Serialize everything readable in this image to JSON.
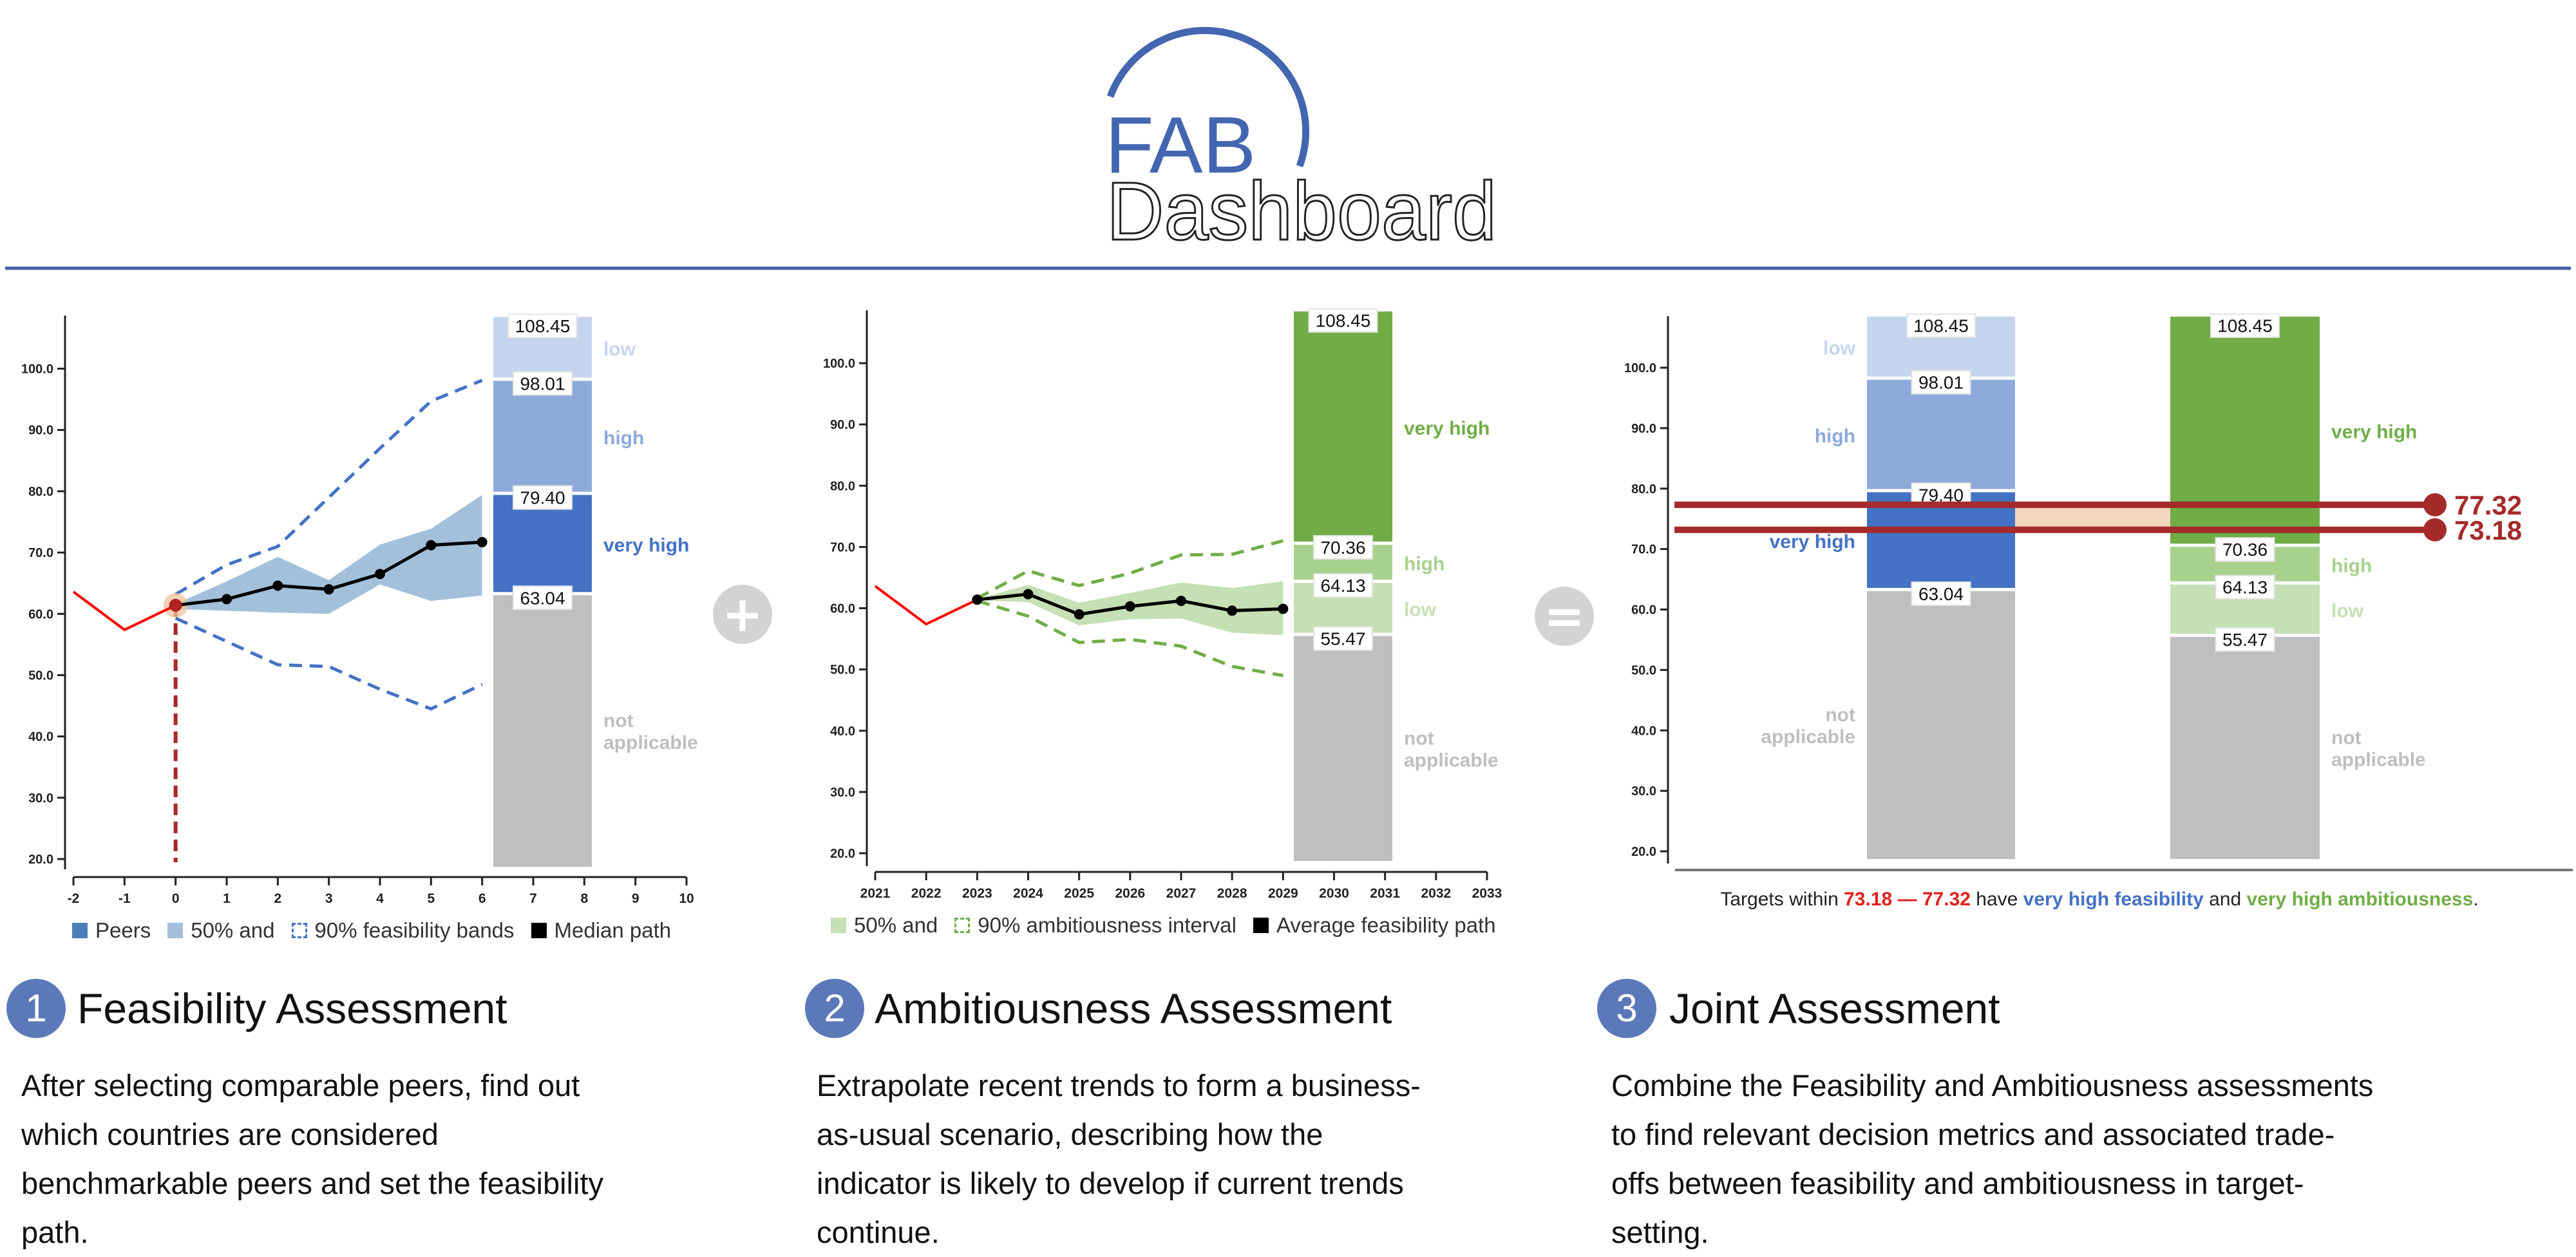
{
  "header": {
    "logo_top": "FAB",
    "logo_bottom": "Dashboard"
  },
  "operators": {
    "plus": "+",
    "equals": "="
  },
  "colors": {
    "brand_blue": "#4463aa",
    "history_red": "#ff0000",
    "target_red": "#a52a2a",
    "target_range_fill": "#f2d6bd",
    "feas_low": "#c6d5ee",
    "feas_high": "#8eaadb",
    "feas_very_high": "#4472c4",
    "amb_very_high": "#70ad47",
    "amb_high": "#a9d18e",
    "amb_low": "#c5e0b4",
    "not_applicable": "#bfbfbf",
    "band50_blue": "#a3c0db",
    "band90_blue": "#4472c4",
    "band50_green": "#c5e0b4",
    "band90_green": "#70ad47"
  },
  "chart_data": [
    {
      "type": "line",
      "title": "",
      "xlim": [
        -2,
        10
      ],
      "ylim": [
        20,
        108.45
      ],
      "x_ticks": [
        "-2",
        "-1",
        "0",
        "1",
        "2",
        "3",
        "4",
        "5",
        "6",
        "7",
        "8",
        "9",
        "10"
      ],
      "y_ticks": [
        "20.0",
        "30.0",
        "40.0",
        "50.0",
        "60.0",
        "70.0",
        "80.0",
        "90.0",
        "100.0"
      ],
      "history": {
        "x": [
          -2,
          -1,
          0
        ],
        "y": [
          63.6,
          57.4,
          61.4
        ]
      },
      "median_path": {
        "x": [
          0,
          1,
          2,
          3,
          4,
          5,
          6
        ],
        "y": [
          61.4,
          62.4,
          64.6,
          64.0,
          66.5,
          71.2,
          71.7
        ]
      },
      "band_50": {
        "x": [
          0,
          1,
          2,
          3,
          4,
          5,
          6
        ],
        "lower": [
          60.8,
          60.5,
          60.2,
          60.0,
          64.8,
          62.1,
          63.0
        ],
        "upper": [
          61.6,
          65.3,
          69.3,
          65.5,
          71.3,
          73.9,
          79.4
        ]
      },
      "band_90": {
        "x": [
          0,
          1,
          2,
          3,
          4,
          5,
          6
        ],
        "lower": [
          59.3,
          55.5,
          51.7,
          51.4,
          47.7,
          44.5,
          48.5
        ],
        "upper": [
          63.2,
          68.0,
          71.0,
          79.0,
          87.0,
          94.7,
          98.1
        ]
      },
      "start_marker": {
        "x": 0,
        "y": 61.4
      },
      "bars": [
        {
          "segments": [
            {
              "label": "not applicable",
              "to": 63.04,
              "color": "#bfbfbf",
              "text_color": "#bfbfbf"
            },
            {
              "label": "very high",
              "to": 79.4,
              "color": "#4472c4",
              "text_color": "#4472c4"
            },
            {
              "label": "high",
              "to": 98.01,
              "color": "#8eaadb",
              "text_color": "#8eaadb"
            },
            {
              "label": "low",
              "to": 108.45,
              "color": "#c6d5ee",
              "text_color": "#c6d5ee"
            }
          ],
          "boundary_labels": [
            "63.04",
            "79.40",
            "98.01",
            "108.45"
          ],
          "label_side": "right"
        }
      ],
      "legend": [
        {
          "label": "Peers",
          "swatch": "solid",
          "color": "#4a7fba"
        },
        {
          "label": "50% and",
          "swatch": "solid",
          "color": "#a3c0db"
        },
        {
          "label": "90% feasibility bands",
          "swatch": "dashed",
          "color": "#4472c4"
        },
        {
          "label": "Median path",
          "swatch": "solid",
          "color": "#000000"
        }
      ]
    },
    {
      "type": "line",
      "title": "",
      "xlim": [
        2021,
        2033
      ],
      "ylim": [
        20,
        108.45
      ],
      "x_ticks": [
        "2021",
        "2022",
        "2023",
        "2024",
        "2025",
        "2026",
        "2027",
        "2028",
        "2029",
        "2030",
        "2031",
        "2032",
        "2033"
      ],
      "y_ticks": [
        "20.0",
        "30.0",
        "40.0",
        "50.0",
        "60.0",
        "70.0",
        "80.0",
        "90.0",
        "100.0"
      ],
      "history": {
        "x": [
          2021,
          2022,
          2023
        ],
        "y": [
          63.6,
          57.4,
          61.4
        ]
      },
      "median_path": {
        "x": [
          2023,
          2024,
          2025,
          2026,
          2027,
          2028,
          2029
        ],
        "y": [
          61.4,
          62.3,
          59.0,
          60.3,
          61.2,
          59.6,
          59.9
        ]
      },
      "band_50": {
        "x": [
          2023,
          2024,
          2025,
          2026,
          2027,
          2028,
          2029
        ],
        "lower": [
          61.3,
          61.0,
          57.2,
          58.2,
          58.3,
          56.0,
          55.6
        ],
        "upper": [
          61.5,
          63.8,
          60.9,
          62.5,
          64.2,
          63.3,
          64.4
        ]
      },
      "band_90": {
        "x": [
          2023,
          2024,
          2025,
          2026,
          2027,
          2028,
          2029
        ],
        "lower": [
          61.2,
          58.7,
          54.4,
          54.9,
          53.8,
          50.5,
          49.0
        ],
        "upper": [
          61.6,
          66.1,
          63.7,
          65.7,
          68.7,
          68.8,
          71.0
        ]
      },
      "bars": [
        {
          "segments": [
            {
              "label": "not applicable",
              "to": 55.47,
              "color": "#bfbfbf",
              "text_color": "#bfbfbf"
            },
            {
              "label": "low",
              "to": 64.13,
              "color": "#c5e0b4",
              "text_color": "#c5e0b4"
            },
            {
              "label": "high",
              "to": 70.36,
              "color": "#a9d18e",
              "text_color": "#a9d18e"
            },
            {
              "label": "very high",
              "to": 108.45,
              "color": "#70ad47",
              "text_color": "#70ad47"
            }
          ],
          "boundary_labels": [
            "55.47",
            "64.13",
            "70.36",
            "108.45"
          ],
          "label_side": "right"
        }
      ],
      "legend": [
        {
          "label": "50% and",
          "swatch": "solid",
          "color": "#c5e0b4"
        },
        {
          "label": "90% ambitiousness interval",
          "swatch": "dashed",
          "color": "#70ad47"
        },
        {
          "label": "Average feasibility path",
          "swatch": "solid",
          "color": "#000000"
        }
      ]
    },
    {
      "type": "bar",
      "title": "",
      "ylim": [
        20,
        108.45
      ],
      "y_ticks": [
        "20.0",
        "30.0",
        "40.0",
        "50.0",
        "60.0",
        "70.0",
        "80.0",
        "90.0",
        "100.0"
      ],
      "bars": [
        {
          "segments": [
            {
              "label": "not applicable",
              "to": 63.04,
              "color": "#bfbfbf",
              "text_color": "#bfbfbf"
            },
            {
              "label": "very high",
              "to": 79.4,
              "color": "#4472c4",
              "text_color": "#4472c4"
            },
            {
              "label": "high",
              "to": 98.01,
              "color": "#8eaadb",
              "text_color": "#8eaadb"
            },
            {
              "label": "low",
              "to": 108.45,
              "color": "#c6d5ee",
              "text_color": "#c6d5ee"
            }
          ],
          "boundary_labels": [
            "63.04",
            "79.40",
            "98.01",
            "108.45"
          ],
          "label_side": "left"
        },
        {
          "segments": [
            {
              "label": "not applicable",
              "to": 55.47,
              "color": "#bfbfbf",
              "text_color": "#bfbfbf"
            },
            {
              "label": "low",
              "to": 64.13,
              "color": "#c5e0b4",
              "text_color": "#c5e0b4"
            },
            {
              "label": "high",
              "to": 70.36,
              "color": "#a9d18e",
              "text_color": "#a9d18e"
            },
            {
              "label": "very high",
              "to": 108.45,
              "color": "#70ad47",
              "text_color": "#70ad47"
            }
          ],
          "boundary_labels": [
            "55.47",
            "64.13",
            "70.36",
            "108.45"
          ],
          "label_side": "right"
        }
      ],
      "target_range": {
        "lower": 73.18,
        "upper": 77.32,
        "lower_label": "73.18",
        "upper_label": "77.32"
      }
    }
  ],
  "caption": {
    "prefix": "Targets within ",
    "range_low": "73.18",
    "dash": " — ",
    "range_high": "77.32",
    "mid": " have ",
    "feasibility": "very high feasibility",
    "and": " and ",
    "ambitiousness": "very high ambitiousness",
    "end": "."
  },
  "sections": [
    {
      "number": "1",
      "title": "Feasibility Assessment",
      "lines": [
        "After selecting comparable peers, find out",
        "which countries are considered",
        "benchmarkable peers and set the feasibility",
        "path."
      ]
    },
    {
      "number": "2",
      "title": "Ambitiousness Assessment",
      "lines": [
        "Extrapolate recent trends to form a business-",
        "as-usual scenario, describing how the",
        "indicator is likely to develop if current trends",
        "continue."
      ]
    },
    {
      "number": "3",
      "title": "Joint Assessment",
      "lines": [
        "Combine the Feasibility and Ambitiousness assessments",
        "to find relevant decision metrics and associated trade-",
        "offs between feasibility and ambitiousness in target-",
        "setting."
      ]
    }
  ]
}
